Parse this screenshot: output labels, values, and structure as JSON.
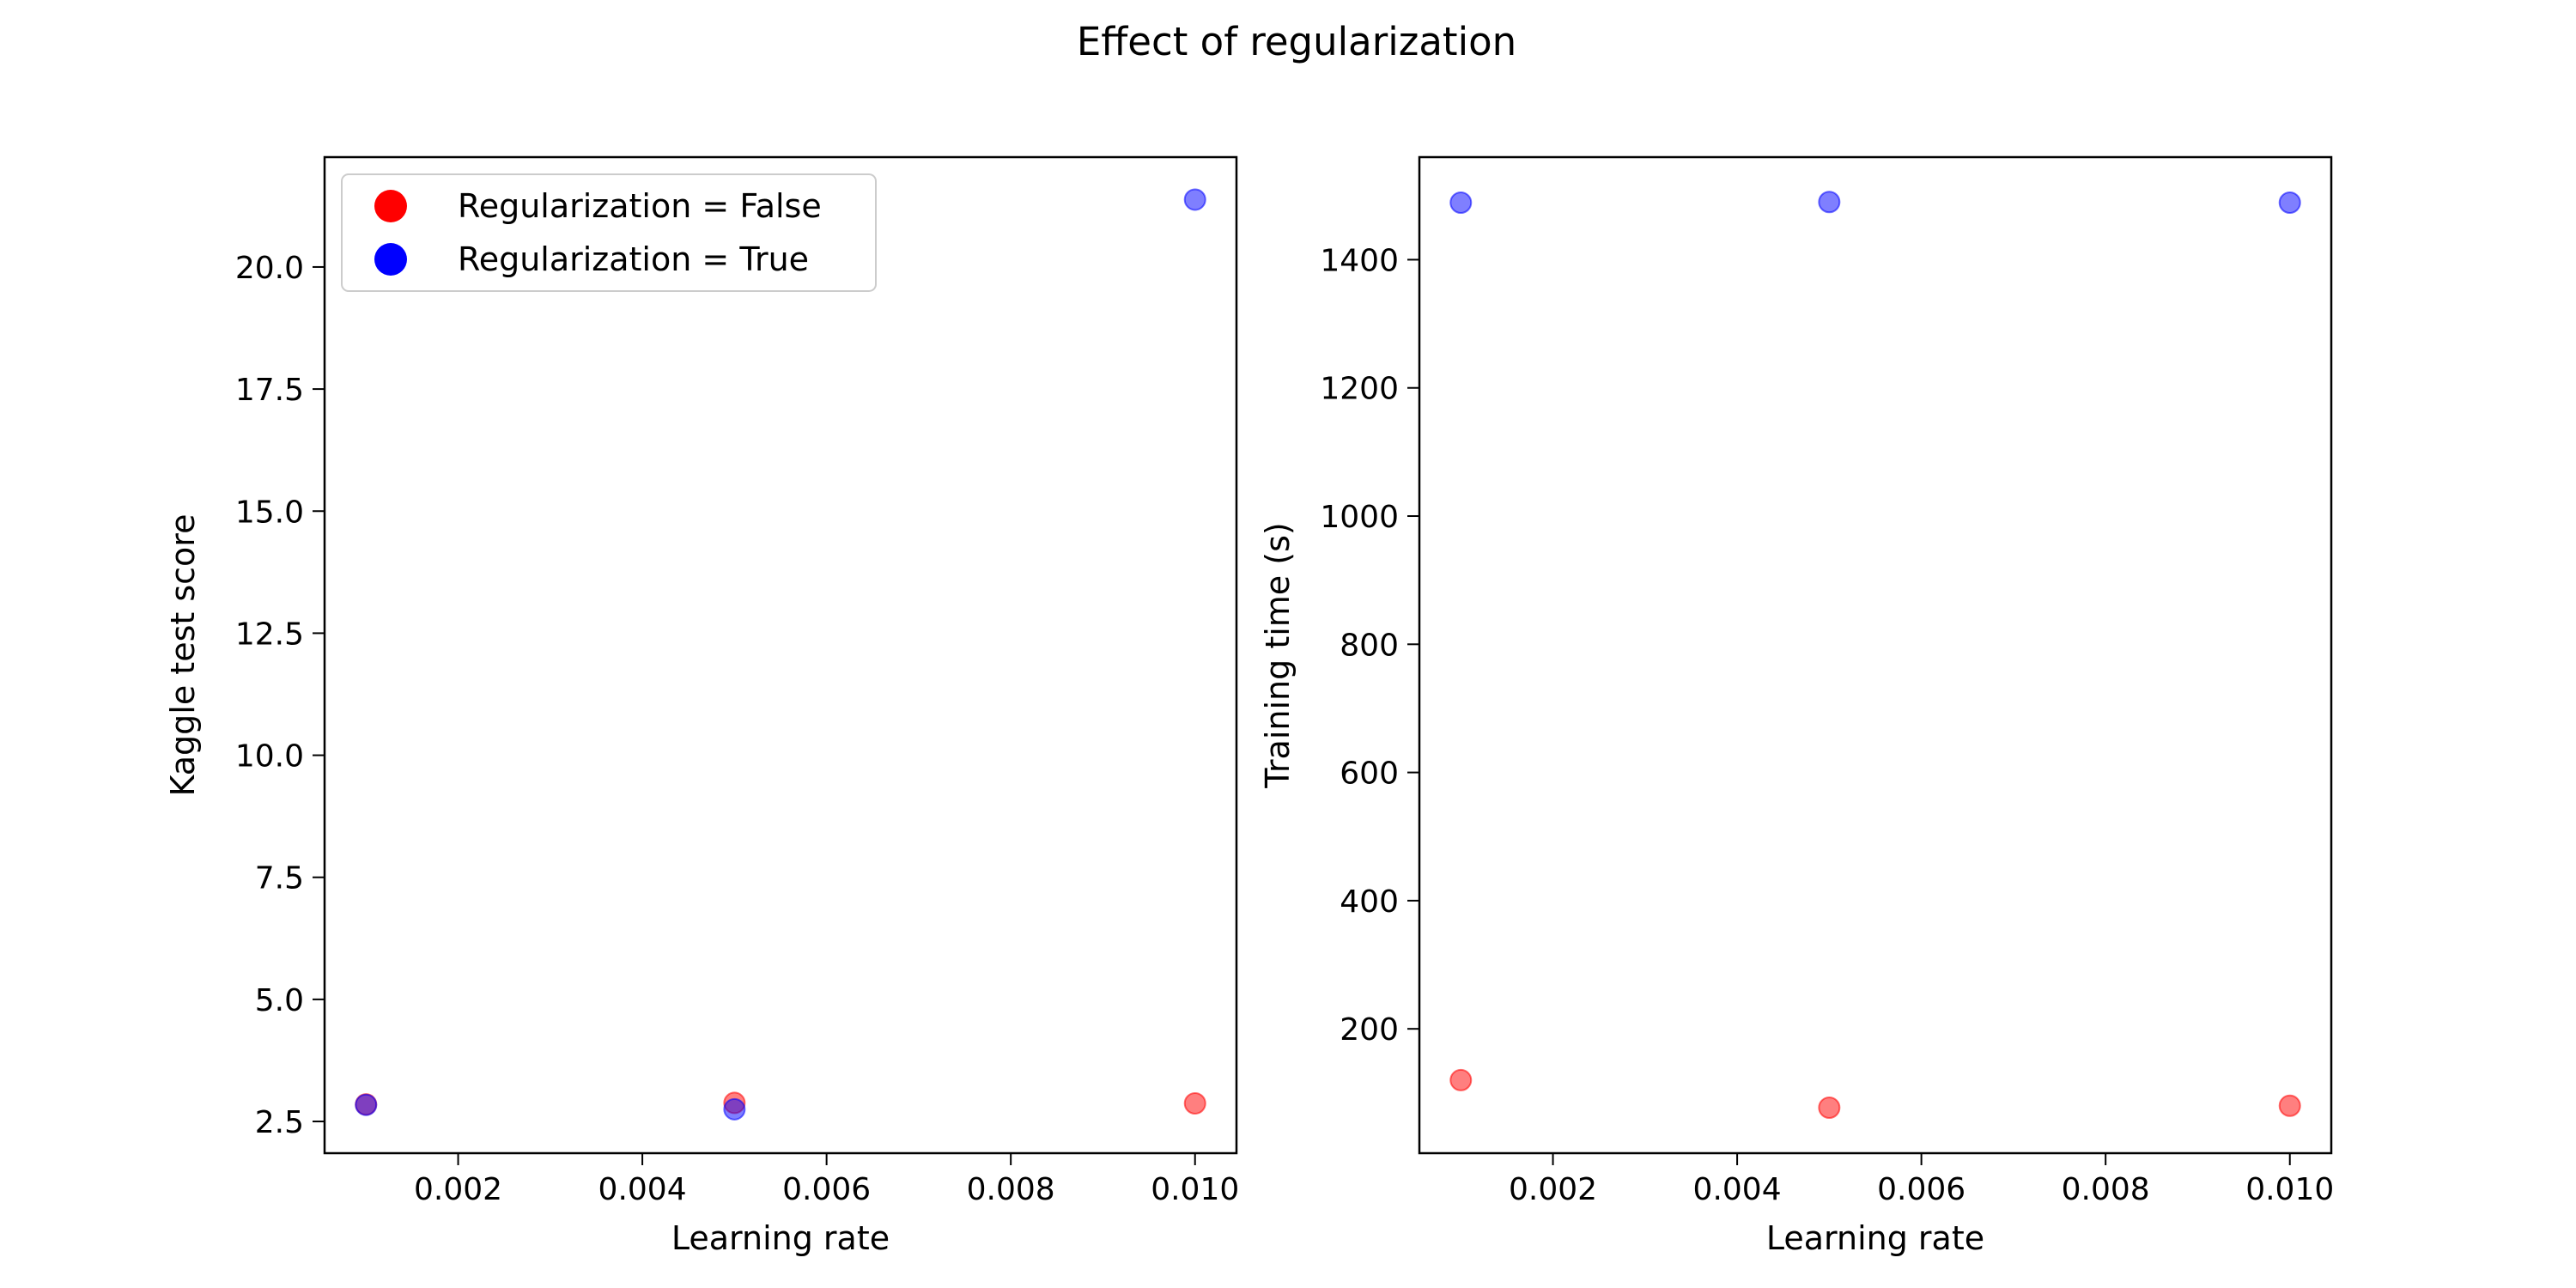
{
  "figure": {
    "suptitle": "Effect of regularization"
  },
  "colors": {
    "regularization_false": "#ff0000",
    "regularization_true": "#0000ff"
  },
  "chart_data": [
    {
      "type": "scatter",
      "xlabel": "Learning rate",
      "ylabel": "Kaggle test score",
      "xlim": [
        0.00055,
        0.01045
      ],
      "ylim": [
        1.85,
        22.25
      ],
      "xticks": [
        0.002,
        0.004,
        0.006,
        0.008,
        0.01
      ],
      "xtick_labels": [
        "0.002",
        "0.004",
        "0.006",
        "0.008",
        "0.010"
      ],
      "yticks": [
        2.5,
        5.0,
        7.5,
        10.0,
        12.5,
        15.0,
        17.5,
        20.0
      ],
      "ytick_labels": [
        "2.5",
        "5.0",
        "7.5",
        "10.0",
        "12.5",
        "15.0",
        "17.5",
        "20.0"
      ],
      "grid": false,
      "legend": {
        "placement": "upper-left",
        "entries": [
          "Regularization = False",
          "Regularization = True"
        ]
      },
      "series": [
        {
          "name": "Regularization = False",
          "color": "#ff0000",
          "x": [
            0.001,
            0.005,
            0.01
          ],
          "y": [
            2.85,
            2.88,
            2.87
          ]
        },
        {
          "name": "Regularization = True",
          "color": "#0000ff",
          "x": [
            0.001,
            0.005,
            0.01
          ],
          "y": [
            2.84,
            2.75,
            21.38
          ]
        }
      ]
    },
    {
      "type": "scatter",
      "xlabel": "Learning rate",
      "ylabel": "Training time (s)",
      "xlim": [
        0.00055,
        0.01045
      ],
      "ylim": [
        6,
        1560
      ],
      "xticks": [
        0.002,
        0.004,
        0.006,
        0.008,
        0.01
      ],
      "xtick_labels": [
        "0.002",
        "0.004",
        "0.006",
        "0.008",
        "0.010"
      ],
      "yticks": [
        200,
        400,
        600,
        800,
        1000,
        1200,
        1400
      ],
      "ytick_labels": [
        "200",
        "400",
        "600",
        "800",
        "1000",
        "1200",
        "1400"
      ],
      "grid": false,
      "series": [
        {
          "name": "Regularization = False",
          "color": "#ff0000",
          "x": [
            0.001,
            0.005,
            0.01
          ],
          "y": [
            120,
            77,
            80
          ]
        },
        {
          "name": "Regularization = True",
          "color": "#0000ff",
          "x": [
            0.001,
            0.005,
            0.01
          ],
          "y": [
            1489,
            1490,
            1489
          ]
        }
      ]
    }
  ]
}
